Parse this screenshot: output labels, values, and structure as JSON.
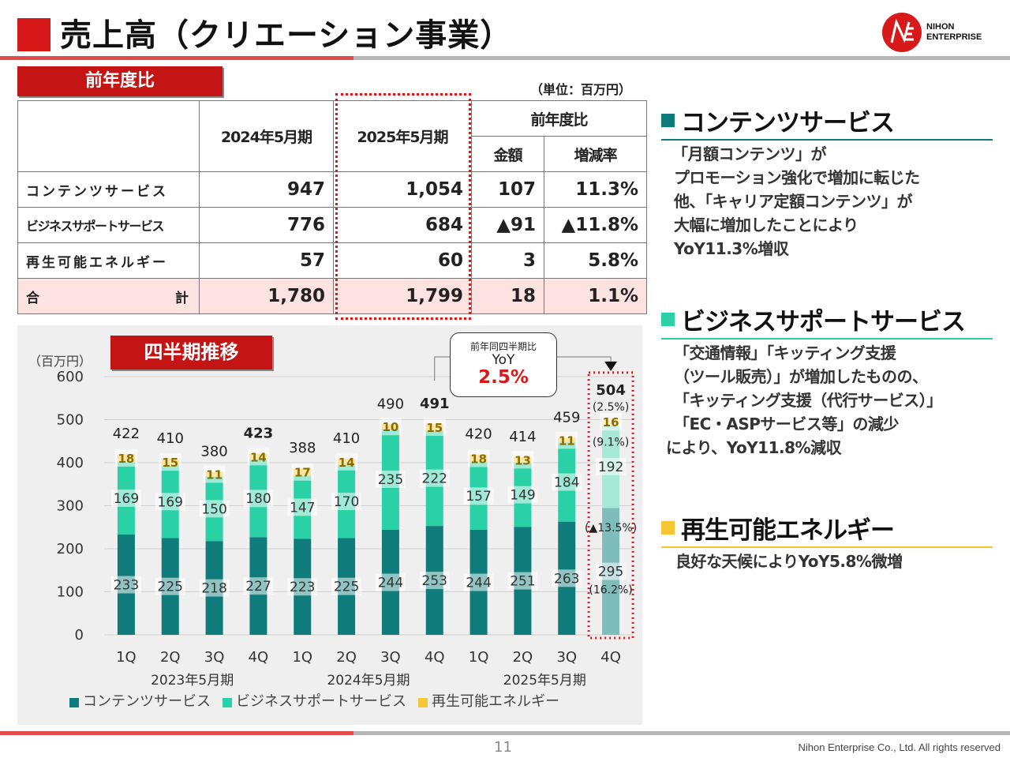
{
  "header": {
    "title": "売上高（クリエーション事業）",
    "logo_line1": "NIHON",
    "logo_line2": "ENTERPRISE"
  },
  "yoy_table": {
    "tag": "前年度比",
    "unit": "（単位：百万円）",
    "col_2024": "2024年5月期",
    "col_2025": "2025年5月期",
    "col_yoy": "前年度比",
    "col_amount": "金額",
    "col_rate": "増減率",
    "rows": [
      {
        "label": "コンテンツサービス",
        "v2024": "947",
        "v2025": "1,054",
        "amount": "107",
        "rate": "11.3%"
      },
      {
        "label": "ビジネスサポートサービス",
        "v2024": "776",
        "v2025": "684",
        "amount": "▲91",
        "rate": "▲11.8%"
      },
      {
        "label": "再生可能エネルギー",
        "v2024": "57",
        "v2025": "60",
        "amount": "3",
        "rate": "5.8%"
      }
    ],
    "total": {
      "label_left": "合",
      "label_right": "計",
      "v2024": "1,780",
      "v2025": "1,799",
      "amount": "18",
      "rate": "1.1%"
    }
  },
  "quarterly": {
    "tag": "四半期推移",
    "y_unit": "（百万円）",
    "callout_line1": "前年同四半期比",
    "callout_line2": "YoY",
    "callout_line3": "2.5%"
  },
  "chart_data": {
    "type": "bar",
    "stacked": true,
    "categories": [
      "1Q",
      "2Q",
      "3Q",
      "4Q",
      "1Q",
      "2Q",
      "3Q",
      "4Q",
      "1Q",
      "2Q",
      "3Q",
      "4Q"
    ],
    "groups": [
      {
        "label": "2023年5月期",
        "from": 0,
        "to": 3
      },
      {
        "label": "2024年5月期",
        "from": 4,
        "to": 7
      },
      {
        "label": "2025年5月期",
        "from": 8,
        "to": 11
      }
    ],
    "series": [
      {
        "name": "コンテンツサービス",
        "color": "#0f7b7b",
        "values": [
          233,
          225,
          218,
          227,
          223,
          225,
          244,
          253,
          244,
          251,
          263,
          295
        ]
      },
      {
        "name": "ビジネスサポートサービス",
        "color": "#2bd1a6",
        "values": [
          169,
          169,
          150,
          180,
          147,
          170,
          235,
          222,
          157,
          149,
          184,
          192
        ]
      },
      {
        "name": "再生可能エネルギー",
        "color": "#f6c634",
        "values": [
          18,
          15,
          11,
          14,
          17,
          14,
          10,
          15,
          18,
          13,
          11,
          16
        ]
      }
    ],
    "totals": [
      "422",
      "410",
      "380",
      "423",
      "388",
      "410",
      "490",
      "491",
      "420",
      "414",
      "459",
      "504"
    ],
    "bold_totals": [
      3,
      7,
      11
    ],
    "last_bar_pct": {
      "total": "(2.5%)",
      "energy": "(9.1%)",
      "business": "(▲13.5%)",
      "content": "(16.2%)"
    },
    "ylim": [
      0,
      600
    ],
    "yticks": [
      "0",
      "100",
      "200",
      "300",
      "400",
      "500",
      "600"
    ],
    "legend": "bottom"
  },
  "sections": [
    {
      "title": "コンテンツサービス",
      "color": "#0f7b7b",
      "lines": [
        "「月額コンテンツ」が",
        "プロモーション強化で増加に転じた",
        "他、「キャリア定額コンテンツ」が",
        "大幅に増加したことにより",
        "YoY11.3%増収"
      ]
    },
    {
      "title": "ビジネスサポートサービス",
      "color": "#2bd1a6",
      "lines": [
        "「交通情報」「キッティング支援",
        "（ツール販売）」が増加したものの、",
        "「キッティング支援（代行サービス）」",
        "「EC・ASPサービス等」の減少",
        "により、YoY11.8%減収"
      ]
    },
    {
      "title": "再生可能エネルギー",
      "color": "#f6c634",
      "lines": [
        "良好な天候によりYoY5.8%微増"
      ]
    }
  ],
  "footer": {
    "page": "11",
    "copyright": "Nihon Enterprise Co., Ltd. All rights reserved"
  }
}
